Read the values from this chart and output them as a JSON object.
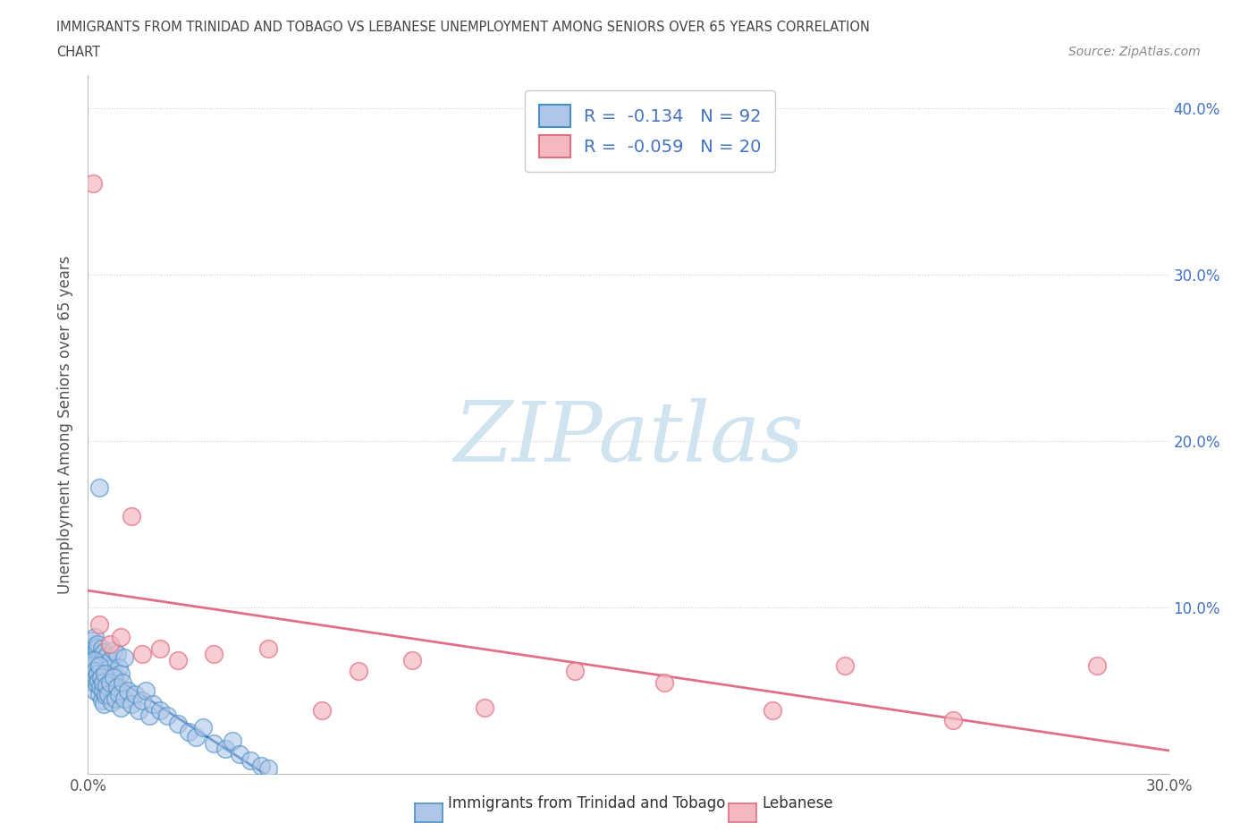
{
  "title_line1": "IMMIGRANTS FROM TRINIDAD AND TOBAGO VS LEBANESE UNEMPLOYMENT AMONG SENIORS OVER 65 YEARS CORRELATION",
  "title_line2": "CHART",
  "source_text": "Source: ZipAtlas.com",
  "ylabel": "Unemployment Among Seniors over 65 years",
  "xlim": [
    0,
    0.3
  ],
  "ylim": [
    0,
    0.42
  ],
  "xticks": [
    0.0,
    0.05,
    0.1,
    0.15,
    0.2,
    0.25,
    0.3
  ],
  "xticklabels": [
    "0.0%",
    "",
    "",
    "",
    "",
    "",
    "30.0%"
  ],
  "yticks": [
    0.0,
    0.1,
    0.2,
    0.3,
    0.4
  ],
  "right_yticklabels": [
    "",
    "10.0%",
    "20.0%",
    "30.0%",
    "40.0%"
  ],
  "series1_label": "Immigrants from Trinidad and Tobago",
  "series2_label": "Lebanese",
  "R1": -0.134,
  "N1": 92,
  "R2": -0.059,
  "N2": 20,
  "series1_fill": "#aec6e8",
  "series1_edge": "#4a90c4",
  "series2_fill": "#f4b8c1",
  "series2_edge": "#e07080",
  "trendline1_solid_color": "#2060a0",
  "trendline1_dash_color": "#80aad0",
  "trendline2_color": "#e07088",
  "watermark_text": "ZIPatlas",
  "watermark_color": "#d0e4f0",
  "background_color": "#ffffff",
  "grid_color": "#cccccc",
  "title_color": "#444444",
  "tick_color": "#555555",
  "right_tick_color": "#4472c4",
  "legend_border_color": "#cccccc",
  "legend_text_color": "#4472c4",
  "source_color": "#888888",
  "series1_x": [
    0.0008,
    0.001,
    0.0011,
    0.0012,
    0.0013,
    0.0014,
    0.0015,
    0.0016,
    0.0017,
    0.0018,
    0.0019,
    0.002,
    0.0021,
    0.0022,
    0.0023,
    0.0024,
    0.0025,
    0.0026,
    0.0027,
    0.0028,
    0.003,
    0.0032,
    0.0034,
    0.0036,
    0.0038,
    0.004,
    0.0042,
    0.0044,
    0.0046,
    0.0048,
    0.005,
    0.0055,
    0.006,
    0.0065,
    0.007,
    0.0075,
    0.008,
    0.0085,
    0.009,
    0.01,
    0.001,
    0.0012,
    0.0014,
    0.0016,
    0.0018,
    0.002,
    0.0022,
    0.0024,
    0.0026,
    0.0028,
    0.003,
    0.0032,
    0.0034,
    0.0036,
    0.0038,
    0.004,
    0.0042,
    0.0044,
    0.0046,
    0.0048,
    0.005,
    0.0055,
    0.006,
    0.0065,
    0.007,
    0.0075,
    0.008,
    0.0085,
    0.009,
    0.0095,
    0.01,
    0.011,
    0.012,
    0.013,
    0.014,
    0.015,
    0.016,
    0.017,
    0.018,
    0.02,
    0.022,
    0.025,
    0.028,
    0.03,
    0.032,
    0.035,
    0.038,
    0.04,
    0.042,
    0.045,
    0.048,
    0.05
  ],
  "series1_y": [
    0.075,
    0.065,
    0.07,
    0.08,
    0.06,
    0.072,
    0.068,
    0.063,
    0.077,
    0.058,
    0.082,
    0.07,
    0.066,
    0.073,
    0.069,
    0.064,
    0.076,
    0.061,
    0.078,
    0.067,
    0.172,
    0.064,
    0.071,
    0.058,
    0.075,
    0.062,
    0.069,
    0.073,
    0.06,
    0.066,
    0.071,
    0.063,
    0.068,
    0.057,
    0.074,
    0.059,
    0.072,
    0.064,
    0.06,
    0.07,
    0.058,
    0.065,
    0.055,
    0.068,
    0.05,
    0.062,
    0.058,
    0.054,
    0.06,
    0.056,
    0.048,
    0.065,
    0.052,
    0.058,
    0.044,
    0.05,
    0.055,
    0.042,
    0.06,
    0.047,
    0.053,
    0.048,
    0.055,
    0.043,
    0.058,
    0.045,
    0.052,
    0.048,
    0.04,
    0.055,
    0.045,
    0.05,
    0.042,
    0.048,
    0.038,
    0.044,
    0.05,
    0.035,
    0.042,
    0.038,
    0.035,
    0.03,
    0.025,
    0.022,
    0.028,
    0.018,
    0.015,
    0.02,
    0.012,
    0.008,
    0.005,
    0.003
  ],
  "series2_x": [
    0.0015,
    0.003,
    0.006,
    0.009,
    0.012,
    0.015,
    0.02,
    0.025,
    0.035,
    0.05,
    0.065,
    0.075,
    0.09,
    0.11,
    0.135,
    0.16,
    0.19,
    0.21,
    0.24,
    0.28
  ],
  "series2_y": [
    0.355,
    0.09,
    0.078,
    0.082,
    0.155,
    0.072,
    0.075,
    0.068,
    0.072,
    0.075,
    0.038,
    0.062,
    0.068,
    0.04,
    0.062,
    0.055,
    0.038,
    0.065,
    0.032,
    0.065
  ],
  "trendline1_x_end_solid": 0.055,
  "trendline1_x_start": 0.0,
  "trendline1_x_end": 0.3
}
